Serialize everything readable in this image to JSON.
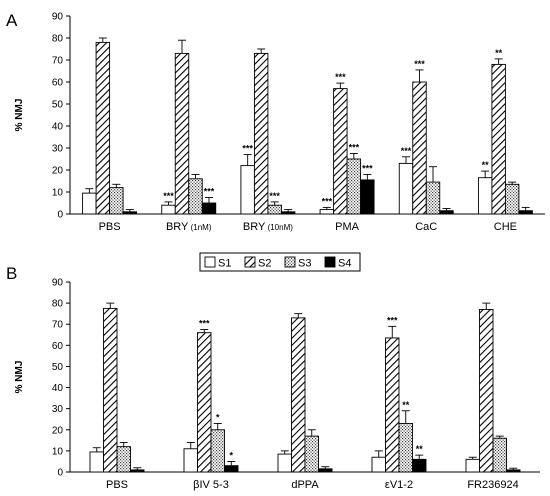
{
  "legend": {
    "placement": "between-panels",
    "entries": [
      {
        "label": "S1",
        "pattern": "open"
      },
      {
        "label": "S2",
        "pattern": "hatched"
      },
      {
        "label": "S3",
        "pattern": "dotted"
      },
      {
        "label": "S4",
        "pattern": "solid"
      }
    ]
  },
  "colors": {
    "open": "#ffffff",
    "solid": "#000000",
    "dotted": "#ffffff",
    "hatched": "#ffffff"
  },
  "chart_data": [
    {
      "panel_label": "A",
      "type": "bar",
      "ylabel": "% NMJ",
      "ylim": [
        0,
        90
      ],
      "yticks": [
        0,
        10,
        20,
        30,
        40,
        50,
        60,
        70,
        80,
        90
      ],
      "grid": false,
      "categories": [
        "PBS",
        "BRY",
        "BRY",
        "PMA",
        "CaC",
        "CHE"
      ],
      "category_notes": [
        "",
        "(1nM)",
        "(10nM)",
        "",
        "",
        ""
      ],
      "series": [
        {
          "name": "S1",
          "values": [
            9.5,
            4,
            22,
            2,
            23,
            16.5
          ],
          "errors": [
            2,
            1.5,
            5,
            1,
            3,
            3
          ],
          "sig": [
            "",
            "***",
            "***",
            "***",
            "***",
            "**"
          ]
        },
        {
          "name": "S2",
          "values": [
            78,
            73,
            73,
            57,
            60,
            68
          ],
          "errors": [
            2,
            6,
            2,
            2.5,
            5.5,
            2.5
          ],
          "sig": [
            "",
            "",
            "",
            "***",
            "***",
            "**"
          ]
        },
        {
          "name": "S3",
          "values": [
            12,
            16,
            4,
            25,
            14.5,
            13.5
          ],
          "errors": [
            1.5,
            2,
            1.5,
            2.5,
            7,
            1
          ],
          "sig": [
            "",
            "",
            "***",
            "***",
            "",
            ""
          ]
        },
        {
          "name": "S4",
          "values": [
            1,
            5,
            1,
            15.5,
            1.5,
            1.5
          ],
          "errors": [
            1,
            2.5,
            1,
            2.5,
            1,
            1.5
          ],
          "sig": [
            "",
            "***",
            "",
            "***",
            "",
            ""
          ]
        }
      ]
    },
    {
      "panel_label": "B",
      "type": "bar",
      "ylabel": "% NMJ",
      "ylim": [
        0,
        90
      ],
      "yticks": [
        0,
        10,
        20,
        30,
        40,
        50,
        60,
        70,
        80,
        90
      ],
      "grid": false,
      "categories": [
        "PBS",
        "βIV 5-3",
        "dPPA",
        "εV1-2",
        "FR236924"
      ],
      "category_notes": [
        "",
        "",
        "",
        "",
        ""
      ],
      "series": [
        {
          "name": "S1",
          "values": [
            9.5,
            11,
            8.5,
            7,
            6
          ],
          "errors": [
            2,
            3,
            1.5,
            3,
            1
          ],
          "sig": [
            "",
            "",
            "",
            "",
            ""
          ]
        },
        {
          "name": "S2",
          "values": [
            77.5,
            66,
            73,
            63.5,
            77
          ],
          "errors": [
            2.5,
            1.5,
            2,
            5.5,
            3
          ],
          "sig": [
            "",
            "***",
            "",
            "***",
            ""
          ]
        },
        {
          "name": "S3",
          "values": [
            12,
            20,
            17,
            23,
            16
          ],
          "errors": [
            2,
            3,
            3,
            6,
            1
          ],
          "sig": [
            "",
            "*",
            "",
            "**",
            ""
          ]
        },
        {
          "name": "S4",
          "values": [
            1,
            3,
            1.5,
            6,
            1
          ],
          "errors": [
            1,
            2,
            1,
            2,
            0.8
          ],
          "sig": [
            "",
            "*",
            "",
            "**",
            ""
          ]
        }
      ]
    }
  ]
}
